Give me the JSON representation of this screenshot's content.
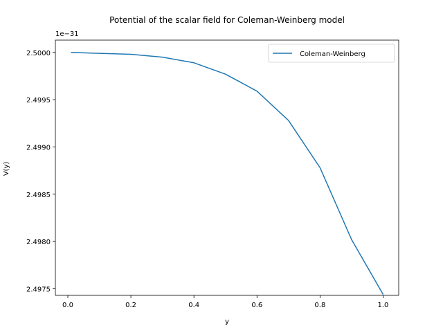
{
  "chart_data": {
    "type": "line",
    "title": "Potential of the scalar field for Coleman-Weinberg model",
    "xlabel": "y",
    "ylabel": "V(y)",
    "y_offset_label": "1e−31",
    "xlim": [
      -0.0395,
      1.0495
    ],
    "ylim": [
      2.49743,
      2.50013
    ],
    "x_ticks": [
      0.0,
      0.2,
      0.4,
      0.6,
      0.8,
      1.0
    ],
    "x_tick_labels": [
      "0.0",
      "0.2",
      "0.4",
      "0.6",
      "0.8",
      "1.0"
    ],
    "y_ticks": [
      2.4975,
      2.498,
      2.4985,
      2.499,
      2.4995,
      2.5
    ],
    "y_tick_labels": [
      "2.4975",
      "2.4980",
      "2.4985",
      "2.4990",
      "2.4995",
      "2.5000"
    ],
    "grid": false,
    "legend": {
      "position": "upper-right",
      "entries": [
        "Coleman-Weinberg"
      ]
    },
    "series": [
      {
        "name": "Coleman-Weinberg",
        "color": "#1f77b4",
        "x": [
          0.01,
          0.1,
          0.2,
          0.3,
          0.4,
          0.5,
          0.6,
          0.7,
          0.8,
          0.9,
          1.0
        ],
        "y": [
          2.5,
          2.49999,
          2.49998,
          2.49995,
          2.49989,
          2.49977,
          2.49959,
          2.49928,
          2.49878,
          2.49802,
          2.49744
        ]
      }
    ]
  }
}
